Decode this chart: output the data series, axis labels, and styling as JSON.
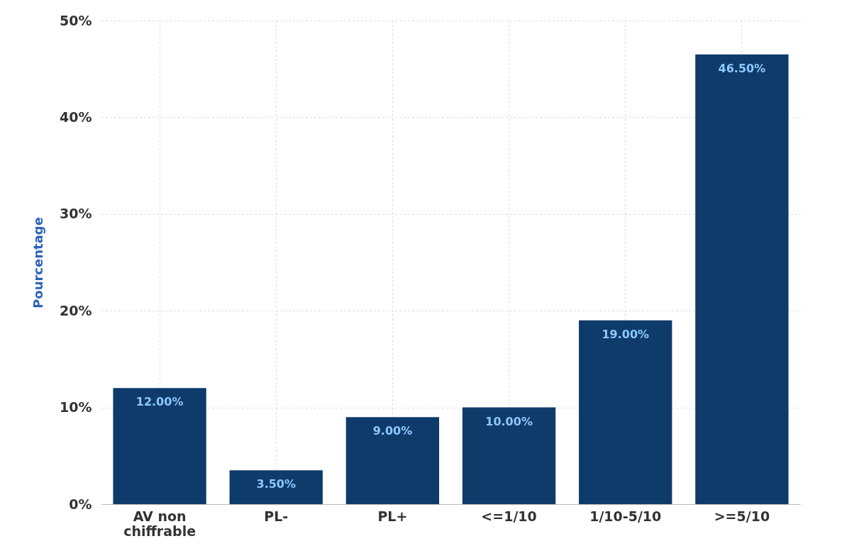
{
  "chart_data": {
    "type": "bar",
    "ylabel": "Pourcentage",
    "categories": [
      "AV non chiffrable",
      "PL-",
      "PL+",
      "<=1/10",
      "1/10-5/10",
      ">=5/10"
    ],
    "values": [
      12,
      3.5,
      9,
      10,
      19,
      46.5
    ],
    "value_labels": [
      "12.00%",
      "3.50%",
      "9.00%",
      "10.00%",
      "19.00%",
      "46.50%"
    ],
    "color": "#0f3b6b",
    "ylim": [
      0,
      50
    ],
    "yticks": [
      {
        "value": 0,
        "label": "0%"
      },
      {
        "value": 10,
        "label": "10%"
      },
      {
        "value": 20,
        "label": "20%"
      },
      {
        "value": 30,
        "label": "30%"
      },
      {
        "value": 40,
        "label": "40%"
      },
      {
        "value": 50,
        "label": "50%"
      }
    ],
    "grid": true
  }
}
